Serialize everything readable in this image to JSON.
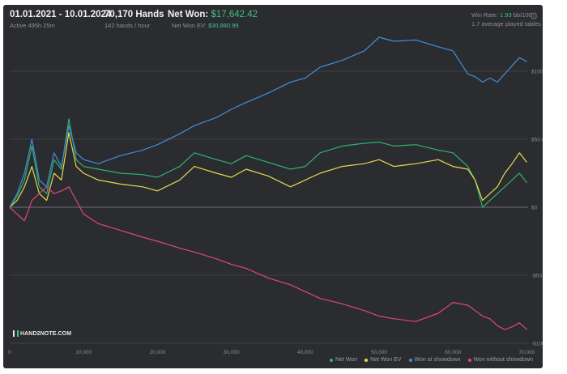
{
  "header": {
    "date_range": "01.01.2021 - 10.01.2024",
    "active": "Active 495h 25m",
    "hands_total": "70,170 Hands",
    "hands_per_hour": "142 hands / hour",
    "net_won_label": "Net Won:",
    "net_won_value": "$17,642.42",
    "net_won_ev_label": "Net Won  EV:",
    "net_won_ev_value": "$30,880.99",
    "win_rate_label": "Win Rate:",
    "win_rate_value": "1.93",
    "win_rate_unit": "bb/100",
    "avg_tables": "1.7 average played tables"
  },
  "logo_text": "HAND2NOTE.COM",
  "icons": {
    "settings": "gear-icon"
  },
  "chart_data": {
    "type": "line",
    "xlabel": "",
    "ylabel": "",
    "xlim": [
      0,
      70170
    ],
    "ylim": [
      -100000,
      125000
    ],
    "x_ticks": [
      0,
      10000,
      20000,
      30000,
      40000,
      50000,
      60000,
      70000
    ],
    "x_tick_labels": [
      "0",
      "10,000",
      "20,000",
      "30,000",
      "40,000",
      "50,000",
      "60,000",
      "70,000"
    ],
    "y_ticks": [
      -100000,
      -50000,
      0,
      50000,
      100000
    ],
    "y_tick_labels": [
      "-$100,000",
      "-$50,000",
      "$0",
      "$50,000",
      "$100,000"
    ],
    "grid": "horizontal",
    "legend_position": "bottom-right",
    "series": [
      {
        "name": "Net Won",
        "color": "#2fb36d",
        "x": [
          0,
          1000,
          2000,
          3000,
          4000,
          5000,
          6000,
          7000,
          8000,
          9000,
          10000,
          12000,
          15000,
          18000,
          20000,
          23000,
          25000,
          28000,
          30000,
          32000,
          35000,
          38000,
          40000,
          42000,
          45000,
          48000,
          50000,
          52000,
          55000,
          58000,
          60000,
          62000,
          63000,
          64000,
          65000,
          66000,
          67000,
          68000,
          69000,
          70000
        ],
        "y": [
          0,
          8000,
          20000,
          45000,
          15000,
          10000,
          35000,
          28000,
          65000,
          35000,
          30000,
          28000,
          25000,
          24000,
          22000,
          30000,
          40000,
          35000,
          32000,
          38000,
          33000,
          28000,
          30000,
          40000,
          45000,
          47000,
          48000,
          45000,
          46000,
          42000,
          40000,
          30000,
          20000,
          0,
          5000,
          10000,
          15000,
          20000,
          25000,
          18000
        ]
      },
      {
        "name": "Net Won  EV",
        "color": "#e8d94a",
        "x": [
          0,
          1000,
          2000,
          3000,
          4000,
          5000,
          6000,
          7000,
          8000,
          9000,
          10000,
          12000,
          15000,
          18000,
          20000,
          23000,
          25000,
          28000,
          30000,
          32000,
          35000,
          38000,
          40000,
          42000,
          45000,
          48000,
          50000,
          52000,
          55000,
          58000,
          60000,
          62000,
          63000,
          64000,
          65000,
          66000,
          67000,
          68000,
          69000,
          70000
        ],
        "y": [
          0,
          5000,
          15000,
          30000,
          10000,
          5000,
          25000,
          20000,
          55000,
          30000,
          25000,
          20000,
          17000,
          15000,
          12000,
          20000,
          30000,
          25000,
          22000,
          28000,
          23000,
          15000,
          20000,
          25000,
          30000,
          32000,
          35000,
          30000,
          32000,
          35000,
          30000,
          28000,
          20000,
          5000,
          10000,
          15000,
          25000,
          32000,
          40000,
          33000
        ]
      },
      {
        "name": "Won at showdown",
        "color": "#3f8fdb",
        "x": [
          0,
          1000,
          2000,
          3000,
          4000,
          5000,
          6000,
          7000,
          8000,
          9000,
          10000,
          12000,
          15000,
          18000,
          20000,
          23000,
          25000,
          28000,
          30000,
          32000,
          35000,
          38000,
          40000,
          42000,
          45000,
          48000,
          50000,
          52000,
          55000,
          58000,
          60000,
          62000,
          63000,
          64000,
          65000,
          66000,
          67000,
          68000,
          69000,
          70000
        ],
        "y": [
          0,
          10000,
          25000,
          50000,
          20000,
          15000,
          40000,
          30000,
          60000,
          40000,
          35000,
          32000,
          38000,
          42000,
          46000,
          54000,
          60000,
          66000,
          72000,
          77000,
          84000,
          92000,
          95000,
          103000,
          108000,
          115000,
          125000,
          122000,
          123000,
          118000,
          115000,
          98000,
          96000,
          92000,
          95000,
          92000,
          98000,
          104000,
          110000,
          107000
        ]
      },
      {
        "name": "Won without showdown",
        "color": "#e0457a",
        "x": [
          0,
          1000,
          2000,
          3000,
          4000,
          5000,
          6000,
          7000,
          8000,
          9000,
          10000,
          12000,
          15000,
          18000,
          20000,
          23000,
          25000,
          28000,
          30000,
          32000,
          35000,
          38000,
          40000,
          42000,
          45000,
          48000,
          50000,
          52000,
          55000,
          58000,
          60000,
          62000,
          63000,
          64000,
          65000,
          66000,
          67000,
          68000,
          69000,
          70000
        ],
        "y": [
          0,
          -5000,
          -10000,
          5000,
          10000,
          15000,
          10000,
          12000,
          15000,
          5000,
          -5000,
          -12000,
          -17000,
          -22000,
          -25000,
          -30000,
          -33000,
          -38000,
          -42000,
          -45000,
          -52000,
          -57000,
          -62000,
          -67000,
          -71000,
          -76000,
          -80000,
          -82000,
          -84000,
          -78000,
          -70000,
          -72000,
          -76000,
          -80000,
          -82000,
          -87000,
          -90000,
          -88000,
          -85000,
          -90000
        ]
      }
    ]
  }
}
